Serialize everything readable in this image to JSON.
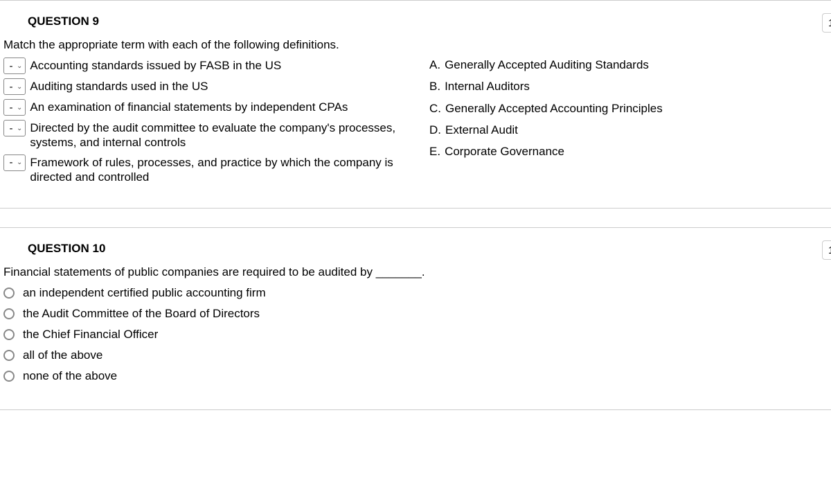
{
  "q9": {
    "title": "QUESTION 9",
    "points_tab": "1",
    "instruction": "Match the appropriate term with each of the following definitions.",
    "definitions": [
      {
        "selected": "-",
        "text": "Accounting standards issued by FASB in the US"
      },
      {
        "selected": "-",
        "text": "Auditing standards used in the US"
      },
      {
        "selected": "-",
        "text": "An examination of financial statements by independent CPAs"
      },
      {
        "selected": "-",
        "text": "Directed by the audit committee to evaluate the company's processes, systems, and internal controls"
      },
      {
        "selected": "-",
        "text": "Framework of rules, processes, and practice by  which the company is directed and controlled"
      }
    ],
    "answers": [
      {
        "letter": "A.",
        "text": "Generally Accepted Auditing Standards"
      },
      {
        "letter": "B.",
        "text": "Internal Auditors"
      },
      {
        "letter": "C.",
        "text": "Generally Accepted Accounting Principles"
      },
      {
        "letter": "D.",
        "text": "External Audit"
      },
      {
        "letter": "E.",
        "text": "Corporate Governance"
      }
    ]
  },
  "q10": {
    "title": "QUESTION 10",
    "points_tab": "1",
    "prompt": "Financial statements of public companies are required to be audited by _______.",
    "options": [
      "an independent certified public accounting firm",
      "the Audit Committee of the Board of Directors",
      "the Chief Financial Officer",
      "all of the above",
      "none of the above"
    ]
  }
}
